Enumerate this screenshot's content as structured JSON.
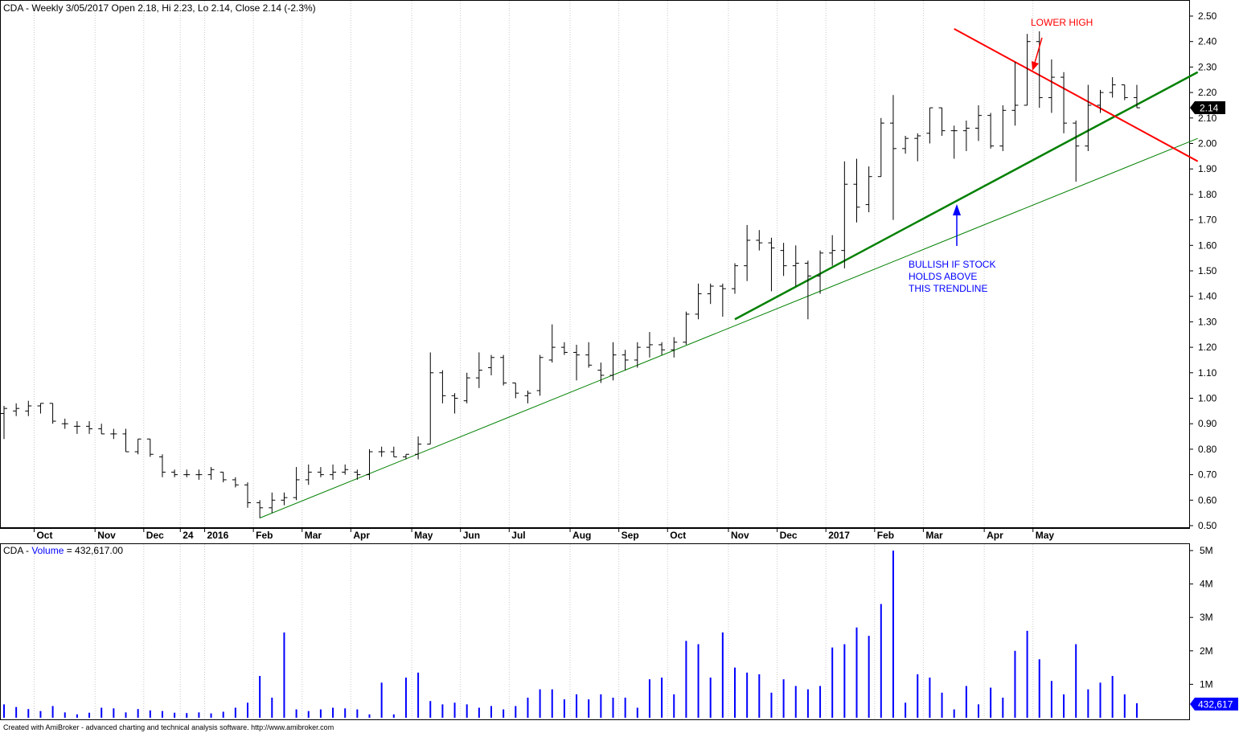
{
  "header": {
    "price_title": "CDA - Weekly 3/05/2017 Open 2.18, Hi 2.23, Lo 2.14, Close 2.14 (-2.3%)",
    "volume_title_prefix": "CDA - ",
    "volume_title_word": "Volume",
    "volume_title_value": " = 432,617.00"
  },
  "footer": {
    "credit": "Created with AmiBroker - advanced charting and technical analysis software. http://www.amibroker.com"
  },
  "annotations": {
    "lower_high": "LOWER HIGH",
    "bullish_line1": "BULLISH IF STOCK",
    "bullish_line2": "HOLDS ABOVE",
    "bullish_line3": "THIS TRENDLINE"
  },
  "colors": {
    "bar": "#000000",
    "volume": "#0000ff",
    "grid": "#c8c8c8",
    "support_trendline": "#008000",
    "resistance_trendline": "#ff0000",
    "annotation_red": "#ff0000",
    "annotation_blue": "#0000ff",
    "last_price_badge": "#000000",
    "last_volume_badge": "#0000ff"
  },
  "chart_data": {
    "type": "ohlc",
    "price_axis": {
      "ticks": [
        "2.50",
        "2.40",
        "2.30",
        "2.20",
        "2.10",
        "2.00",
        "1.90",
        "1.80",
        "1.70",
        "1.60",
        "1.50",
        "1.40",
        "1.30",
        "1.20",
        "1.10",
        "1.00",
        "0.90",
        "0.80",
        "0.70",
        "0.60",
        "0.50"
      ],
      "ylim": [
        0.5,
        2.5
      ],
      "last_price_label": "2.14"
    },
    "volume_axis": {
      "ticks": [
        "5M",
        "4M",
        "3M",
        "2M",
        "1M"
      ],
      "ylim": [
        0,
        5000000
      ],
      "last_volume_label": "432,617"
    },
    "x_tick_labels": [
      {
        "label": "Oct",
        "bar": 3
      },
      {
        "label": "Nov",
        "bar": 8
      },
      {
        "label": "Dec",
        "bar": 12
      },
      {
        "label": "24",
        "bar": 15
      },
      {
        "label": "2016",
        "bar": 17
      },
      {
        "label": "Feb",
        "bar": 21
      },
      {
        "label": "Mar",
        "bar": 25
      },
      {
        "label": "Apr",
        "bar": 29
      },
      {
        "label": "May",
        "bar": 34
      },
      {
        "label": "Jun",
        "bar": 38
      },
      {
        "label": "Jul",
        "bar": 42
      },
      {
        "label": "Aug",
        "bar": 47
      },
      {
        "label": "Sep",
        "bar": 51
      },
      {
        "label": "Oct",
        "bar": 55
      },
      {
        "label": "Nov",
        "bar": 60
      },
      {
        "label": "Dec",
        "bar": 64
      },
      {
        "label": "2017",
        "bar": 68
      },
      {
        "label": "Feb",
        "bar": 72
      },
      {
        "label": "Mar",
        "bar": 76
      },
      {
        "label": "Apr",
        "bar": 81
      },
      {
        "label": "May",
        "bar": 85
      }
    ],
    "bars": [
      {
        "o": 0.94,
        "h": 0.97,
        "l": 0.84,
        "c": 0.96,
        "v": 400000
      },
      {
        "o": 0.95,
        "h": 0.98,
        "l": 0.93,
        "c": 0.96,
        "v": 320000
      },
      {
        "o": 0.95,
        "h": 0.99,
        "l": 0.93,
        "c": 0.97,
        "v": 260000
      },
      {
        "o": 0.97,
        "h": 0.98,
        "l": 0.94,
        "c": 0.98,
        "v": 200000
      },
      {
        "o": 0.98,
        "h": 0.98,
        "l": 0.9,
        "c": 0.91,
        "v": 350000
      },
      {
        "o": 0.9,
        "h": 0.92,
        "l": 0.88,
        "c": 0.9,
        "v": 160000
      },
      {
        "o": 0.89,
        "h": 0.91,
        "l": 0.86,
        "c": 0.89,
        "v": 100000
      },
      {
        "o": 0.89,
        "h": 0.91,
        "l": 0.86,
        "c": 0.88,
        "v": 150000
      },
      {
        "o": 0.88,
        "h": 0.9,
        "l": 0.86,
        "c": 0.86,
        "v": 300000
      },
      {
        "o": 0.86,
        "h": 0.88,
        "l": 0.84,
        "c": 0.86,
        "v": 280000
      },
      {
        "o": 0.86,
        "h": 0.88,
        "l": 0.79,
        "c": 0.79,
        "v": 160000
      },
      {
        "o": 0.79,
        "h": 0.84,
        "l": 0.78,
        "c": 0.84,
        "v": 260000
      },
      {
        "o": 0.84,
        "h": 0.84,
        "l": 0.77,
        "c": 0.78,
        "v": 220000
      },
      {
        "o": 0.77,
        "h": 0.78,
        "l": 0.69,
        "c": 0.71,
        "v": 200000
      },
      {
        "o": 0.71,
        "h": 0.72,
        "l": 0.69,
        "c": 0.7,
        "v": 150000
      },
      {
        "o": 0.7,
        "h": 0.72,
        "l": 0.69,
        "c": 0.7,
        "v": 140000
      },
      {
        "o": 0.7,
        "h": 0.72,
        "l": 0.68,
        "c": 0.7,
        "v": 160000
      },
      {
        "o": 0.7,
        "h": 0.73,
        "l": 0.68,
        "c": 0.72,
        "v": 130000
      },
      {
        "o": 0.71,
        "h": 0.71,
        "l": 0.67,
        "c": 0.68,
        "v": 180000
      },
      {
        "o": 0.68,
        "h": 0.69,
        "l": 0.65,
        "c": 0.66,
        "v": 300000
      },
      {
        "o": 0.66,
        "h": 0.67,
        "l": 0.57,
        "c": 0.59,
        "v": 450000
      },
      {
        "o": 0.59,
        "h": 0.6,
        "l": 0.53,
        "c": 0.57,
        "v": 1250000
      },
      {
        "o": 0.57,
        "h": 0.63,
        "l": 0.55,
        "c": 0.6,
        "v": 600000
      },
      {
        "o": 0.6,
        "h": 0.63,
        "l": 0.58,
        "c": 0.61,
        "v": 2550000
      },
      {
        "o": 0.61,
        "h": 0.73,
        "l": 0.6,
        "c": 0.68,
        "v": 250000
      },
      {
        "o": 0.68,
        "h": 0.74,
        "l": 0.66,
        "c": 0.71,
        "v": 200000
      },
      {
        "o": 0.71,
        "h": 0.73,
        "l": 0.69,
        "c": 0.7,
        "v": 250000
      },
      {
        "o": 0.7,
        "h": 0.74,
        "l": 0.68,
        "c": 0.71,
        "v": 300000
      },
      {
        "o": 0.71,
        "h": 0.74,
        "l": 0.7,
        "c": 0.72,
        "v": 280000
      },
      {
        "o": 0.71,
        "h": 0.72,
        "l": 0.68,
        "c": 0.7,
        "v": 250000
      },
      {
        "o": 0.7,
        "h": 0.8,
        "l": 0.68,
        "c": 0.79,
        "v": 100000
      },
      {
        "o": 0.79,
        "h": 0.81,
        "l": 0.77,
        "c": 0.79,
        "v": 1050000
      },
      {
        "o": 0.79,
        "h": 0.81,
        "l": 0.77,
        "c": 0.77,
        "v": 100000
      },
      {
        "o": 0.77,
        "h": 0.78,
        "l": 0.76,
        "c": 0.78,
        "v": 1200000
      },
      {
        "o": 0.78,
        "h": 0.85,
        "l": 0.76,
        "c": 0.82,
        "v": 1350000
      },
      {
        "o": 0.82,
        "h": 1.18,
        "l": 0.82,
        "c": 1.1,
        "v": 500000
      },
      {
        "o": 1.1,
        "h": 1.11,
        "l": 0.98,
        "c": 1.01,
        "v": 400000
      },
      {
        "o": 1.01,
        "h": 1.02,
        "l": 0.94,
        "c": 1.0,
        "v": 450000
      },
      {
        "o": 0.99,
        "h": 1.1,
        "l": 0.98,
        "c": 1.08,
        "v": 400000
      },
      {
        "o": 1.08,
        "h": 1.18,
        "l": 1.04,
        "c": 1.11,
        "v": 300000
      },
      {
        "o": 1.12,
        "h": 1.17,
        "l": 1.09,
        "c": 1.16,
        "v": 350000
      },
      {
        "o": 1.16,
        "h": 1.17,
        "l": 1.05,
        "c": 1.06,
        "v": 250000
      },
      {
        "o": 1.06,
        "h": 1.06,
        "l": 1.0,
        "c": 1.02,
        "v": 350000
      },
      {
        "o": 1.01,
        "h": 1.03,
        "l": 0.98,
        "c": 1.02,
        "v": 600000
      },
      {
        "o": 1.03,
        "h": 1.17,
        "l": 1.01,
        "c": 1.16,
        "v": 850000
      },
      {
        "o": 1.15,
        "h": 1.29,
        "l": 1.14,
        "c": 1.2,
        "v": 850000
      },
      {
        "o": 1.2,
        "h": 1.22,
        "l": 1.17,
        "c": 1.18,
        "v": 550000
      },
      {
        "o": 1.18,
        "h": 1.21,
        "l": 1.07,
        "c": 1.17,
        "v": 700000
      },
      {
        "o": 1.17,
        "h": 1.22,
        "l": 1.12,
        "c": 1.13,
        "v": 550000
      },
      {
        "o": 1.11,
        "h": 1.14,
        "l": 1.06,
        "c": 1.09,
        "v": 700000
      },
      {
        "o": 1.09,
        "h": 1.22,
        "l": 1.07,
        "c": 1.17,
        "v": 600000
      },
      {
        "o": 1.17,
        "h": 1.19,
        "l": 1.11,
        "c": 1.15,
        "v": 600000
      },
      {
        "o": 1.15,
        "h": 1.22,
        "l": 1.12,
        "c": 1.2,
        "v": 300000
      },
      {
        "o": 1.2,
        "h": 1.26,
        "l": 1.16,
        "c": 1.21,
        "v": 1150000
      },
      {
        "o": 1.21,
        "h": 1.22,
        "l": 1.17,
        "c": 1.19,
        "v": 1200000
      },
      {
        "o": 1.19,
        "h": 1.24,
        "l": 1.16,
        "c": 1.22,
        "v": 700000
      },
      {
        "o": 1.22,
        "h": 1.34,
        "l": 1.21,
        "c": 1.33,
        "v": 2300000
      },
      {
        "o": 1.33,
        "h": 1.45,
        "l": 1.31,
        "c": 1.41,
        "v": 2200000
      },
      {
        "o": 1.41,
        "h": 1.45,
        "l": 1.37,
        "c": 1.44,
        "v": 1200000
      },
      {
        "o": 1.44,
        "h": 1.45,
        "l": 1.32,
        "c": 1.43,
        "v": 2550000
      },
      {
        "o": 1.43,
        "h": 1.53,
        "l": 1.41,
        "c": 1.52,
        "v": 1500000
      },
      {
        "o": 1.52,
        "h": 1.68,
        "l": 1.46,
        "c": 1.62,
        "v": 1350000
      },
      {
        "o": 1.62,
        "h": 1.66,
        "l": 1.58,
        "c": 1.61,
        "v": 1300000
      },
      {
        "o": 1.61,
        "h": 1.63,
        "l": 1.42,
        "c": 1.59,
        "v": 750000
      },
      {
        "o": 1.58,
        "h": 1.61,
        "l": 1.48,
        "c": 1.52,
        "v": 1150000
      },
      {
        "o": 1.52,
        "h": 1.6,
        "l": 1.44,
        "c": 1.53,
        "v": 950000
      },
      {
        "o": 1.53,
        "h": 1.54,
        "l": 1.31,
        "c": 1.48,
        "v": 850000
      },
      {
        "o": 1.48,
        "h": 1.58,
        "l": 1.41,
        "c": 1.57,
        "v": 950000
      },
      {
        "o": 1.57,
        "h": 1.64,
        "l": 1.52,
        "c": 1.58,
        "v": 2100000
      },
      {
        "o": 1.58,
        "h": 1.93,
        "l": 1.51,
        "c": 1.84,
        "v": 2200000
      },
      {
        "o": 1.84,
        "h": 1.94,
        "l": 1.69,
        "c": 1.75,
        "v": 2700000
      },
      {
        "o": 1.76,
        "h": 1.91,
        "l": 1.73,
        "c": 1.87,
        "v": 2450000
      },
      {
        "o": 1.87,
        "h": 2.1,
        "l": 1.87,
        "c": 2.08,
        "v": 3400000
      },
      {
        "o": 2.08,
        "h": 2.19,
        "l": 1.7,
        "c": 1.98,
        "v": 5000000
      },
      {
        "o": 1.98,
        "h": 2.03,
        "l": 1.96,
        "c": 2.02,
        "v": 450000
      },
      {
        "o": 2.02,
        "h": 2.04,
        "l": 1.93,
        "c": 2.03,
        "v": 1300000
      },
      {
        "o": 2.04,
        "h": 2.14,
        "l": 2.0,
        "c": 2.14,
        "v": 1200000
      },
      {
        "o": 2.14,
        "h": 2.14,
        "l": 2.03,
        "c": 2.05,
        "v": 750000
      },
      {
        "o": 2.05,
        "h": 2.07,
        "l": 1.94,
        "c": 2.05,
        "v": 250000
      },
      {
        "o": 2.05,
        "h": 2.09,
        "l": 1.97,
        "c": 2.06,
        "v": 950000
      },
      {
        "o": 2.06,
        "h": 2.15,
        "l": 2.01,
        "c": 2.11,
        "v": 400000
      },
      {
        "o": 2.11,
        "h": 2.12,
        "l": 1.98,
        "c": 1.99,
        "v": 900000
      },
      {
        "o": 1.99,
        "h": 2.15,
        "l": 1.97,
        "c": 2.13,
        "v": 600000
      },
      {
        "o": 2.13,
        "h": 2.32,
        "l": 2.07,
        "c": 2.15,
        "v": 2000000
      },
      {
        "o": 2.15,
        "h": 2.43,
        "l": 2.15,
        "c": 2.4,
        "v": 2600000
      },
      {
        "o": 2.4,
        "h": 2.44,
        "l": 2.14,
        "c": 2.18,
        "v": 1750000
      },
      {
        "o": 2.18,
        "h": 2.33,
        "l": 2.12,
        "c": 2.26,
        "v": 1100000
      },
      {
        "o": 2.26,
        "h": 2.28,
        "l": 2.04,
        "c": 2.08,
        "v": 700000
      },
      {
        "o": 2.08,
        "h": 2.09,
        "l": 1.85,
        "c": 1.99,
        "v": 2200000
      },
      {
        "o": 1.99,
        "h": 2.23,
        "l": 1.97,
        "c": 2.15,
        "v": 850000
      },
      {
        "o": 2.15,
        "h": 2.21,
        "l": 2.12,
        "c": 2.2,
        "v": 1050000
      },
      {
        "o": 2.2,
        "h": 2.26,
        "l": 2.18,
        "c": 2.23,
        "v": 1250000
      },
      {
        "o": 2.23,
        "h": 2.23,
        "l": 2.17,
        "c": 2.18,
        "v": 700000
      },
      {
        "o": 2.18,
        "h": 2.23,
        "l": 2.14,
        "c": 2.14,
        "v": 432617
      }
    ],
    "trendlines": [
      {
        "kind": "support",
        "color": "#008000",
        "width": 1,
        "from": {
          "bar": 21,
          "value": 0.53
        },
        "to": {
          "bar": 98,
          "value": 2.02
        }
      },
      {
        "kind": "support",
        "color": "#008000",
        "width": 2.5,
        "from": {
          "bar": 60,
          "value": 1.31
        },
        "to": {
          "bar": 98,
          "value": 2.28
        }
      },
      {
        "kind": "resistance",
        "color": "#ff0000",
        "width": 2,
        "from": {
          "bar": 78,
          "value": 2.45
        },
        "to": {
          "bar": 98,
          "value": 1.93
        }
      }
    ]
  }
}
